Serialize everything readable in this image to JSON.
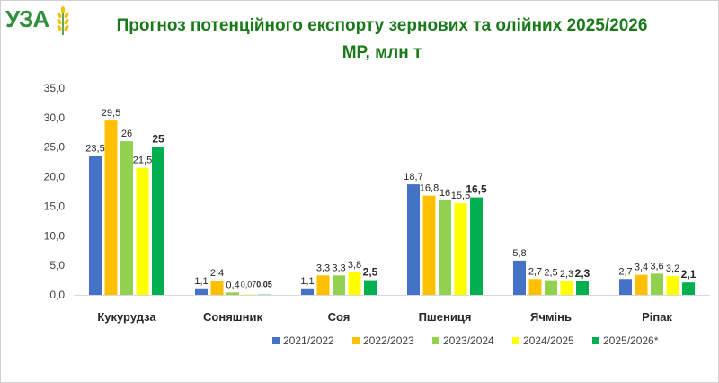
{
  "logo": {
    "text": "УЗА",
    "icon": "wheat-ear-icon"
  },
  "chart_data": {
    "type": "bar",
    "title": "Прогноз потенційного експорту зернових та олійних 2025/2026 МР, млн т",
    "title_line1": "Прогноз потенційного експорту зернових та олійних 2025/2026",
    "title_line2": "МР, млн т",
    "categories": [
      "Кукурудза",
      "Соняшник",
      "Соя",
      "Пшениця",
      "Ячмінь",
      "Ріпак"
    ],
    "ylim": [
      0,
      35
    ],
    "yticks": [
      "0,0",
      "5,0",
      "10,0",
      "15,0",
      "20,0",
      "25,0",
      "30,0",
      "35,0"
    ],
    "grid": false,
    "legend_position": "bottom",
    "series": [
      {
        "name": "2021/2022",
        "color": "#4472C4",
        "values": [
          23.5,
          1.1,
          1.1,
          18.7,
          5.8,
          2.7
        ],
        "labels": [
          "23,5",
          "1,1",
          "1,1",
          "18,7",
          "5,8",
          "2,7"
        ]
      },
      {
        "name": "2022/2023",
        "color": "#FFC000",
        "values": [
          29.5,
          2.4,
          3.3,
          16.8,
          2.7,
          3.4
        ],
        "labels": [
          "29,5",
          "2,4",
          "3,3",
          "16,8",
          "2,7",
          "3,4"
        ]
      },
      {
        "name": "2023/2024",
        "color": "#92D050",
        "values": [
          26,
          0.4,
          3.3,
          16,
          2.5,
          3.6
        ],
        "labels": [
          "26",
          "0,4",
          "3,3",
          "16",
          "2,5",
          "3,6"
        ]
      },
      {
        "name": "2024/2025",
        "color": "#FFFF00",
        "values": [
          21.5,
          0.07,
          3.8,
          15.5,
          2.3,
          3.2
        ],
        "labels": [
          "21,5",
          "0,07",
          "3,8",
          "15,5",
          "2,3",
          "3,2"
        ]
      },
      {
        "name": "2025/2026*",
        "color": "#00B050",
        "bold": true,
        "values": [
          25,
          0.05,
          2.5,
          16.5,
          2.3,
          2.1
        ],
        "labels": [
          "25",
          "0,05",
          "2,5",
          "16,5",
          "2,3",
          "2,1"
        ]
      }
    ]
  }
}
